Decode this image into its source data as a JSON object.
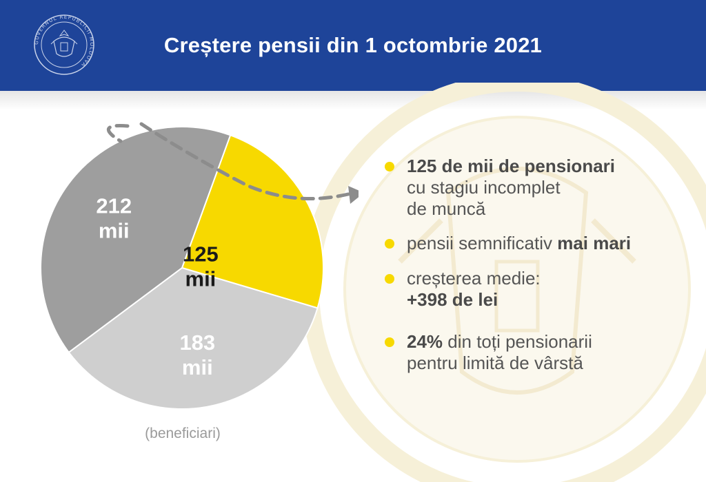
{
  "header": {
    "title": "Creștere pensii din 1 octombrie 2021",
    "emblem_icon": "government-seal-icon",
    "emblem_text": "GUVERNUL REPUBLICII MOLDOVA"
  },
  "chart_data": {
    "type": "pie",
    "title": "",
    "slices": [
      {
        "value": 125,
        "label": "125",
        "unit": "mii",
        "color": "#f7d900",
        "text_color": "#1a1a1a"
      },
      {
        "value": 183,
        "label": "183",
        "unit": "mii",
        "color": "#cfcfcf",
        "text_color": "#ffffff"
      },
      {
        "value": 212,
        "label": "212",
        "unit": "mii",
        "color": "#9e9e9e",
        "text_color": "#ffffff"
      }
    ],
    "unit_note": "(beneficiari)"
  },
  "bullets": [
    {
      "bold": "125 de mii de pensionari",
      "line2": "cu stagiu incomplet",
      "line3": "de muncă"
    },
    {
      "normal": "pensii semnificativ ",
      "bold": "mai mari"
    },
    {
      "normal": "creșterea medie:",
      "bold": "+398 de lei"
    },
    {
      "bold": "24%",
      "normal": " din toți pensionarii",
      "line2": "pentru limită de vârstă"
    }
  ],
  "colors": {
    "header_bg": "#1e4499",
    "accent_yellow": "#f7d900",
    "arrow": "#8c8c8c"
  }
}
